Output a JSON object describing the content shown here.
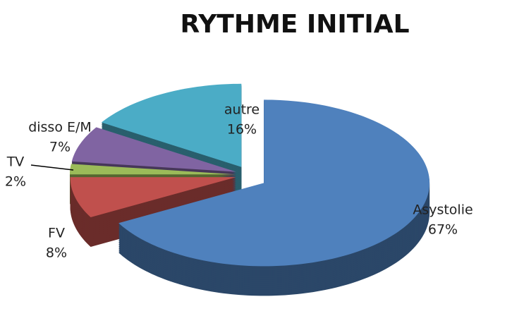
{
  "chart_data": {
    "type": "pie",
    "title": "RYTHME INITIAL",
    "categories": [
      "Asystolie",
      "FV",
      "TV",
      "disso E/M",
      "autre"
    ],
    "values": [
      67,
      8,
      2,
      7,
      16
    ],
    "value_labels": [
      "67%",
      "8%",
      "2%",
      "7%",
      "16%"
    ],
    "colors": [
      "#4f81bd",
      "#c0504d",
      "#9bbb59",
      "#8064a2",
      "#4bacc6"
    ]
  }
}
